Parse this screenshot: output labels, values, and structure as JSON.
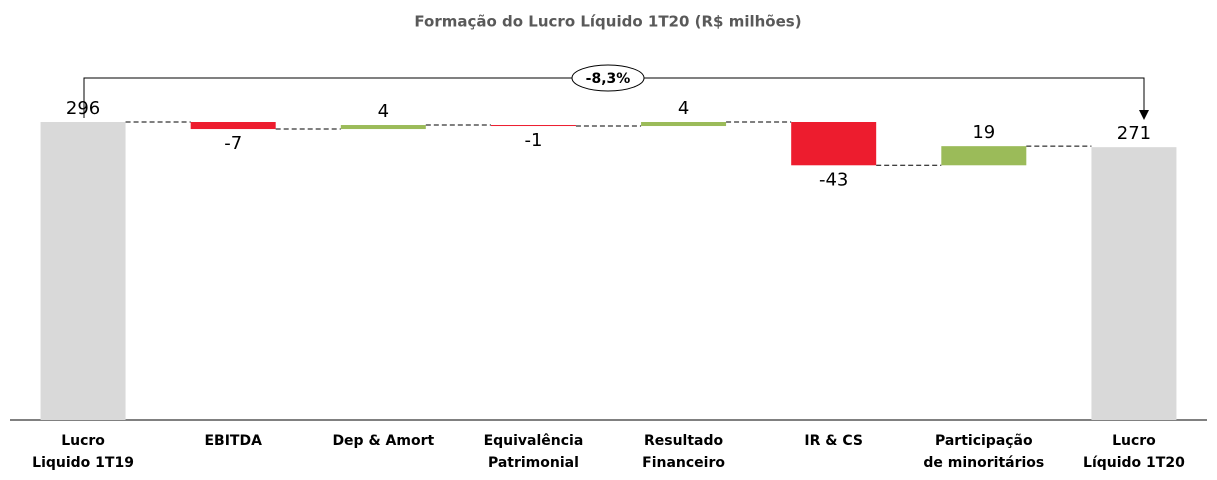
{
  "chart_data": {
    "type": "waterfall",
    "title": "Formação do Lucro Líquido 1T20 (R$ milhões)",
    "categories": [
      [
        "Lucro",
        "Liquido 1T19"
      ],
      [
        "EBITDA"
      ],
      [
        "Dep & Amort"
      ],
      [
        "Equivalência",
        "Patrimonial"
      ],
      [
        "Resultado",
        "Financeiro"
      ],
      [
        "IR & CS"
      ],
      [
        "Participação",
        "de minoritários"
      ],
      [
        "Lucro",
        "Líquido 1T20"
      ]
    ],
    "values": [
      296,
      -7,
      4,
      -1,
      4,
      -43,
      19,
      271
    ],
    "colors": {
      "total": "#d9d9d9",
      "increase": "#9bbb59",
      "decrease": "#ed1c2e"
    },
    "annotation": "-8,3%"
  }
}
